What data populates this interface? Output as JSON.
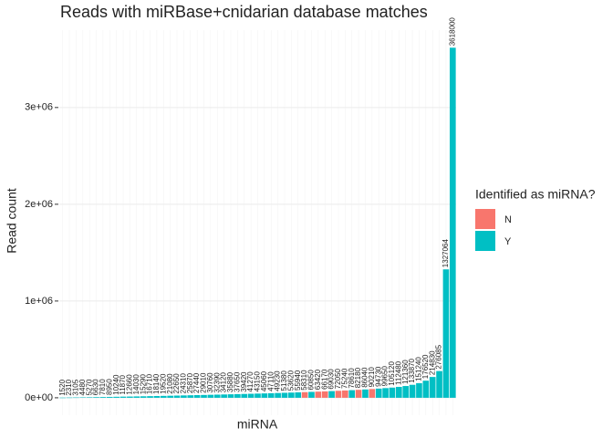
{
  "chart_data": {
    "type": "bar",
    "title": "Reads with miRBase+cnidarian database matches",
    "x_label": "miRNA",
    "y_label": "Read count",
    "legend_title": "Identified as miRNA?",
    "legend_position": "right",
    "grid": true,
    "categories": [
      null,
      null,
      null,
      null,
      null,
      null,
      null,
      null,
      null,
      null,
      null,
      null,
      null,
      null,
      null,
      null,
      null,
      null,
      null,
      null,
      null,
      null,
      null,
      null,
      null,
      null,
      null,
      null,
      null,
      null,
      null,
      null,
      null,
      null,
      null,
      null,
      null,
      null,
      null,
      null,
      null,
      null,
      null,
      null,
      null,
      null,
      null,
      null,
      null,
      null,
      null,
      null,
      null,
      null,
      null,
      null,
      null,
      null,
      null
    ],
    "series": [
      {
        "name": "N",
        "color": "#F8766D",
        "values": [
          null,
          null,
          null,
          null,
          null,
          null,
          null,
          null,
          null,
          null,
          null,
          null,
          null,
          null,
          null,
          null,
          null,
          null,
          null,
          null,
          null,
          null,
          null,
          null,
          null,
          null,
          null,
          null,
          null,
          null,
          null,
          null,
          null,
          null,
          null,
          null,
          58310,
          null,
          63420,
          66170,
          null,
          72050,
          75240,
          null,
          82180,
          null,
          90210,
          null,
          null,
          null,
          null,
          null,
          null,
          null,
          null,
          null,
          null,
          null,
          null
        ]
      },
      {
        "name": "Y",
        "color": "#00BFC4",
        "values": [
          1520,
          2310,
          3105,
          4480,
          5270,
          6630,
          7810,
          8950,
          10240,
          11870,
          12660,
          14030,
          15290,
          16710,
          18140,
          19520,
          21080,
          22650,
          24310,
          25870,
          27440,
          29010,
          30760,
          32390,
          34120,
          35880,
          37650,
          39420,
          41270,
          43150,
          45060,
          47110,
          49230,
          51380,
          53620,
          55940,
          null,
          60850,
          null,
          null,
          69030,
          null,
          null,
          78610,
          null,
          86040,
          null,
          94730,
          99650,
          105120,
          112480,
          121360,
          133870,
          151240,
          176520,
          214830,
          276085,
          1327064,
          3618000
        ]
      }
    ],
    "ylim": [
      -180000,
      3800000
    ],
    "yticks": [
      {
        "value": 0,
        "label": "0e+00"
      },
      {
        "value": 1000000,
        "label": "1e+06"
      },
      {
        "value": 2000000,
        "label": "2e+06"
      },
      {
        "value": 3000000,
        "label": "3e+06"
      }
    ]
  }
}
